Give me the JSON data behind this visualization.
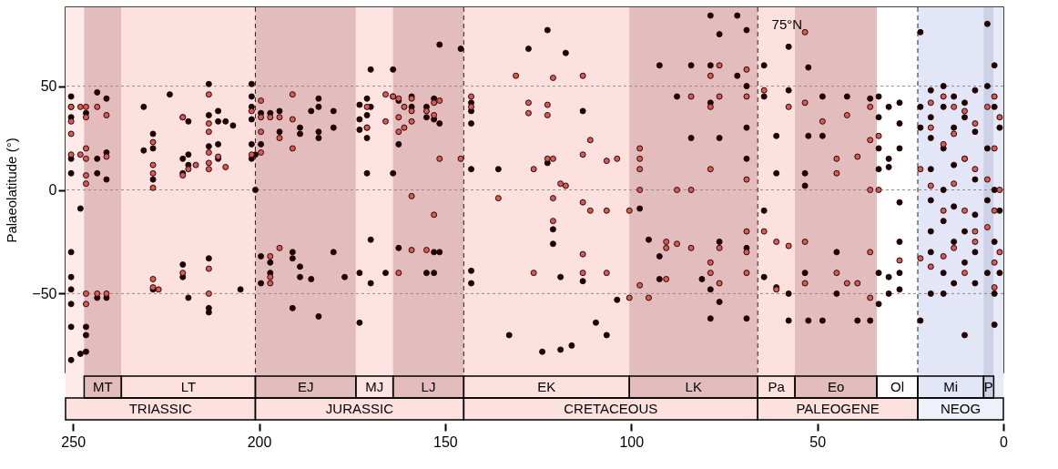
{
  "chart_data": {
    "type": "scatter",
    "ylabel": "Palaeolatitude (°)",
    "xlim": [
      252,
      0
    ],
    "xticks": [
      250,
      200,
      150,
      100,
      50,
      0
    ],
    "ylim": [
      -88,
      88
    ],
    "yticks": [
      -50,
      0,
      50
    ],
    "grid": "y",
    "marker": "circle",
    "series": [
      {
        "color": "#1a0606",
        "x": [
          250.5,
          250.5,
          250.5,
          250.5,
          250.5,
          250.5,
          250.5,
          250.5,
          250.5,
          250.5,
          250.5,
          248,
          248,
          246.5,
          246.5,
          246.5,
          246.5,
          243.5,
          243.5,
          243.5,
          243.5,
          241,
          241,
          241,
          241,
          231,
          231,
          228.5,
          228.5,
          228.5,
          228.5,
          224,
          220.5,
          220.5,
          220.5,
          220.5,
          220.5,
          219,
          219,
          219,
          219,
          213.5,
          213.5,
          213.5,
          213.5,
          213.5,
          213.5,
          211,
          211,
          211,
          211,
          209,
          207,
          205,
          202,
          202,
          202,
          202,
          202,
          202,
          201,
          201,
          199.5,
          199.5,
          199.5,
          199.5,
          197,
          197,
          197,
          194.5,
          194.5,
          191,
          191,
          191,
          189,
          189,
          189,
          189,
          186,
          186,
          184,
          184,
          184,
          184,
          184,
          180,
          180,
          180,
          177,
          173,
          173,
          173,
          173,
          173,
          171,
          171,
          171,
          171,
          171,
          170,
          170,
          170,
          170,
          166,
          164,
          164,
          164,
          162.5,
          162.5,
          162.5,
          159,
          159,
          155,
          155,
          155,
          153,
          153,
          153,
          153,
          151.5,
          151.5,
          151.5,
          145.8,
          143,
          143,
          143,
          143,
          143,
          143,
          135.7,
          132.8,
          127.6,
          123.9,
          122.5,
          122.5,
          121,
          121,
          119,
          119,
          117.6,
          116,
          113,
          113,
          109.5,
          106.6,
          103.8,
          97.7,
          95.3,
          92.4,
          92.4,
          92.4,
          87.7,
          83.9,
          83.9,
          81,
          78.7,
          78.7,
          78.7,
          78.7,
          78.7,
          76.3,
          76.3,
          76.3,
          76.3,
          71.5,
          71.5,
          69,
          69,
          69,
          69,
          69,
          69,
          64.3,
          64.3,
          64.3,
          64.3,
          61,
          61,
          61,
          57.7,
          57.7,
          57.7,
          57.7,
          53.3,
          53.3,
          53.3,
          52.4,
          52.4,
          52.4,
          48.6,
          48.6,
          48.6,
          44.8,
          44.8,
          42,
          39.2,
          35.8,
          35.8,
          33.5,
          33.5,
          33.5,
          33.5,
          33.5,
          33.5,
          30.8,
          30.8,
          30.8,
          30.8,
          30.8,
          27.9,
          27.9,
          27.9,
          27.9,
          27.9,
          27.9,
          27.9,
          22.3,
          22.3,
          22.3,
          22.3,
          19.5,
          19.5,
          19.5,
          19.5,
          19.5,
          19.5,
          19.5,
          19.5,
          16.1,
          16.1,
          16.1,
          16.1,
          16.1,
          16.1,
          16.1,
          13.3,
          13.3,
          13.3,
          13.3,
          13.3,
          13.3,
          10.4,
          10.4,
          10.4,
          10.4,
          10.4,
          10.4,
          7.6,
          7.6,
          7.6,
          7.6,
          7.6,
          7.6,
          4.3,
          4.3,
          4.3,
          4.3,
          4.3,
          2.4,
          2.4,
          2.4,
          2.4,
          2.4,
          2.4,
          1,
          1,
          1
        ],
        "values": [
          45,
          40,
          35,
          15,
          8,
          -30,
          -42,
          -48,
          -55,
          -66,
          -82,
          -9,
          -79,
          37,
          -66,
          -70,
          -78,
          47,
          15,
          8,
          -52,
          44,
          18,
          5,
          -52,
          40,
          19,
          27,
          20,
          5,
          -48,
          46,
          35,
          15,
          8,
          -36,
          -42,
          33,
          17,
          12,
          -52,
          51,
          36,
          21,
          -33,
          -57,
          -59,
          38,
          33,
          22,
          15,
          33,
          31,
          -48,
          51,
          45,
          40,
          34,
          22,
          15,
          0,
          17,
          37,
          22,
          -32,
          -45,
          37,
          -35,
          -40,
          38,
          28,
          -30,
          -33,
          -57,
          30,
          27,
          -37,
          -42,
          38,
          -43,
          44,
          40,
          28,
          25,
          -61,
          38,
          30,
          -30,
          -42,
          41,
          34,
          29,
          -40,
          -64,
          44,
          36,
          30,
          25,
          8,
          58,
          40,
          -24,
          -45,
          -40,
          58,
          45,
          8,
          43,
          22,
          -28,
          45,
          40,
          40,
          35,
          -40,
          44,
          34,
          -30,
          -40,
          70,
          32,
          -30,
          68,
          42,
          38,
          32,
          10,
          -39,
          -45,
          10,
          -70,
          68,
          -78,
          77,
          13,
          -19,
          -26,
          -42,
          -77,
          66,
          -75,
          38,
          -44,
          -64,
          -70,
          -53,
          -9,
          -24,
          60,
          -32,
          -43,
          45,
          60,
          25,
          -43,
          84,
          60,
          42,
          -48,
          -62,
          75,
          25,
          -25,
          -54,
          84,
          55,
          77,
          50,
          30,
          15,
          -28,
          -62,
          60,
          45,
          -10,
          -42,
          26,
          8,
          -47,
          69,
          48,
          -50,
          -63,
          8,
          2,
          -40,
          59,
          26,
          -63,
          45,
          26,
          -63,
          -30,
          -50,
          45,
          -63,
          44,
          -63,
          45,
          35,
          20,
          10,
          -40,
          -55,
          40,
          15,
          11,
          -42,
          -50,
          42,
          32,
          20,
          -6,
          -25,
          -40,
          -48,
          76,
          40,
          30,
          -63,
          48,
          35,
          25,
          10,
          -5,
          -20,
          -30,
          -50,
          50,
          40,
          20,
          0,
          -15,
          -40,
          -50,
          45,
          30,
          12,
          -8,
          -25,
          -45,
          42,
          35,
          15,
          -20,
          -35,
          -70,
          48,
          28,
          5,
          -12,
          -30,
          -45,
          80,
          50,
          20,
          -5,
          -40,
          60,
          40,
          0,
          -25,
          -50,
          -65,
          30,
          -10,
          -40
        ]
      },
      {
        "color": "#d65a55",
        "x": [
          250.5,
          250.5,
          250.5,
          250.5,
          248,
          248,
          246.5,
          246.5,
          246.5,
          246.5,
          246.5,
          246.5,
          246.5,
          246.5,
          243.5,
          243.5,
          241,
          241,
          241,
          228.5,
          228.5,
          228.5,
          228.5,
          228.5,
          228.5,
          227,
          220.5,
          220.5,
          220.5,
          219,
          217,
          213.5,
          213.5,
          213.5,
          213.5,
          213.5,
          213.5,
          213.5,
          213.5,
          211,
          209,
          202,
          202,
          199.5,
          199.5,
          199.5,
          199.5,
          197,
          197,
          197,
          197,
          194.5,
          194.5,
          194.5,
          191,
          191,
          191,
          171,
          171,
          166,
          166,
          164,
          162.5,
          162.5,
          162.5,
          162.5,
          161,
          161,
          159,
          159,
          159,
          159,
          159,
          155,
          155,
          153,
          153,
          153,
          151.5,
          151.5,
          145.8,
          143,
          143,
          135.7,
          131,
          127.6,
          127.6,
          126.2,
          126.2,
          122.5,
          122.5,
          122.5,
          121,
          121,
          121,
          121,
          119,
          117.6,
          113,
          113,
          113,
          113,
          113,
          111,
          111,
          106.6,
          106.6,
          106.6,
          103.8,
          100.5,
          100.5,
          97.7,
          97.7,
          97.7,
          97.7,
          97.7,
          95.3,
          90.6,
          90.6,
          90.6,
          87.7,
          87.7,
          83.9,
          83.9,
          83.9,
          78.7,
          78.7,
          78.7,
          78.7,
          78.7,
          76.3,
          76.3,
          76.3,
          76.3,
          69,
          69,
          69,
          69,
          69,
          69,
          64.3,
          64.3,
          61,
          61,
          57.7,
          57.7,
          53.3,
          53.3,
          53.3,
          53.3,
          48.6,
          44.8,
          44.8,
          44.8,
          42,
          42,
          39.2,
          39.2,
          35.8,
          35.8,
          35.8,
          35.8,
          35.8,
          33.5,
          33.5,
          27.9,
          22.3,
          22.3,
          19.5,
          19.5,
          19.5,
          19.5,
          16.1,
          16.1,
          16.1,
          16.1,
          13.3,
          13.3,
          13.3,
          13.3,
          10.4,
          10.4,
          10.4,
          10.4,
          7.6,
          7.6,
          7.6,
          7.6,
          4.3,
          4.3,
          4.3,
          2.4,
          2.4,
          2.4,
          2.4,
          2.4,
          1,
          1,
          1
        ],
        "values": [
          40,
          33,
          27,
          17,
          40,
          17,
          40,
          35,
          20,
          15,
          7,
          3,
          -50,
          -55,
          40,
          -50,
          36,
          16,
          -50,
          23,
          12,
          8,
          1,
          -43,
          -47,
          -48,
          35,
          7,
          -40,
          10,
          12,
          46,
          32,
          28,
          18,
          13,
          10,
          -38,
          -50,
          16,
          11,
          38,
          17,
          43,
          35,
          28,
          18,
          35,
          -32,
          -42,
          -45,
          35,
          25,
          -28,
          46,
          34,
          20,
          40,
          30,
          46,
          33,
          45,
          44,
          35,
          28,
          -40,
          40,
          30,
          44,
          38,
          33,
          -3,
          -29,
          38,
          -29,
          42,
          36,
          -12,
          43,
          15,
          15,
          45,
          40,
          -4,
          55,
          42,
          37,
          10,
          -40,
          41,
          36,
          15,
          54,
          15,
          -4,
          -15,
          3,
          2,
          55,
          17,
          -6,
          -31,
          -40,
          24,
          -10,
          14,
          -10,
          -40,
          15,
          -52,
          -10,
          20,
          15,
          10,
          0,
          -46,
          -52,
          -25,
          -28,
          -43,
          0,
          -26,
          -28,
          0,
          45,
          10,
          -35,
          -40,
          55,
          40,
          60,
          45,
          -28,
          -45,
          58,
          45,
          5,
          -20,
          -30,
          -40,
          48,
          -20,
          -25,
          -48,
          40,
          -27,
          76,
          42,
          -25,
          -45,
          33,
          15,
          8,
          -40,
          36,
          -45,
          16,
          -45,
          40,
          24,
          0,
          -30,
          -52,
          26,
          0,
          -34,
          10,
          -33,
          42,
          30,
          2,
          -37,
          45,
          22,
          -10,
          -32,
          40,
          27,
          3,
          -28,
          38,
          15,
          -10,
          -40,
          32,
          10,
          -20,
          -25,
          40,
          5,
          -18,
          45,
          20,
          -10,
          -35,
          -47,
          35,
          0,
          -30
        ]
      }
    ],
    "bands": [
      {
        "axis": "x",
        "from": 252,
        "to": 247,
        "color": "#feeae8"
      },
      {
        "axis": "x",
        "from": 247,
        "to": 237,
        "label": "MT",
        "color": "#e3bdbd"
      },
      {
        "axis": "x",
        "from": 237,
        "to": 201,
        "label": "LT",
        "color": "#fde1df"
      },
      {
        "axis": "x",
        "from": 201,
        "to": 174,
        "label": "EJ",
        "color": "#e3bdbd"
      },
      {
        "axis": "x",
        "from": 174,
        "to": 164,
        "label": "MJ",
        "color": "#fde4e2"
      },
      {
        "axis": "x",
        "from": 164,
        "to": 145,
        "label": "LJ",
        "color": "#e3bdbd"
      },
      {
        "axis": "x",
        "from": 145,
        "to": 100.5,
        "label": "EK",
        "color": "#fde1df"
      },
      {
        "axis": "x",
        "from": 100.5,
        "to": 66,
        "label": "LK",
        "color": "#e3bdbd"
      },
      {
        "axis": "x",
        "from": 66,
        "to": 56,
        "label": "Pa",
        "color": "#fde1df"
      },
      {
        "axis": "x",
        "from": 56,
        "to": 34,
        "label": "Eo",
        "color": "#e3bdbd"
      },
      {
        "axis": "x",
        "from": 34,
        "to": 23,
        "label": "Ol",
        "color": "#ffffff"
      },
      {
        "axis": "x",
        "from": 23,
        "to": 5.3,
        "label": "Mi",
        "color": "#e2e6f6"
      },
      {
        "axis": "x",
        "from": 5.3,
        "to": 2.6,
        "label": "P",
        "color": "#cdd1e5"
      },
      {
        "axis": "x",
        "from": 2.6,
        "to": 0,
        "color": "#e6e9f6"
      },
      {
        "axis": "x",
        "from": 252,
        "to": 201,
        "label": "TRIASSIC",
        "color": "#fde1df"
      },
      {
        "axis": "x",
        "from": 201,
        "to": 145,
        "label": "JURASSIC",
        "color": "#fde1df"
      },
      {
        "axis": "x",
        "from": 145,
        "to": 66,
        "label": "CRETACEOUS",
        "color": "#fde1df"
      },
      {
        "axis": "x",
        "from": 66,
        "to": 23,
        "label": "PALEOGENE",
        "color": "#fde1df"
      },
      {
        "axis": "x",
        "from": 23,
        "to": 0,
        "label": "NEOG",
        "color": "#eef0fa"
      }
    ],
    "ref_lines": [
      {
        "axis": "x",
        "value": 201,
        "line_style": "dashed"
      },
      {
        "axis": "x",
        "value": 145,
        "line_style": "dashed"
      },
      {
        "axis": "x",
        "value": 66,
        "line_style": "dashed"
      },
      {
        "axis": "x",
        "value": 23,
        "line_style": "dashed"
      }
    ],
    "annotations": [
      "75°N"
    ]
  }
}
